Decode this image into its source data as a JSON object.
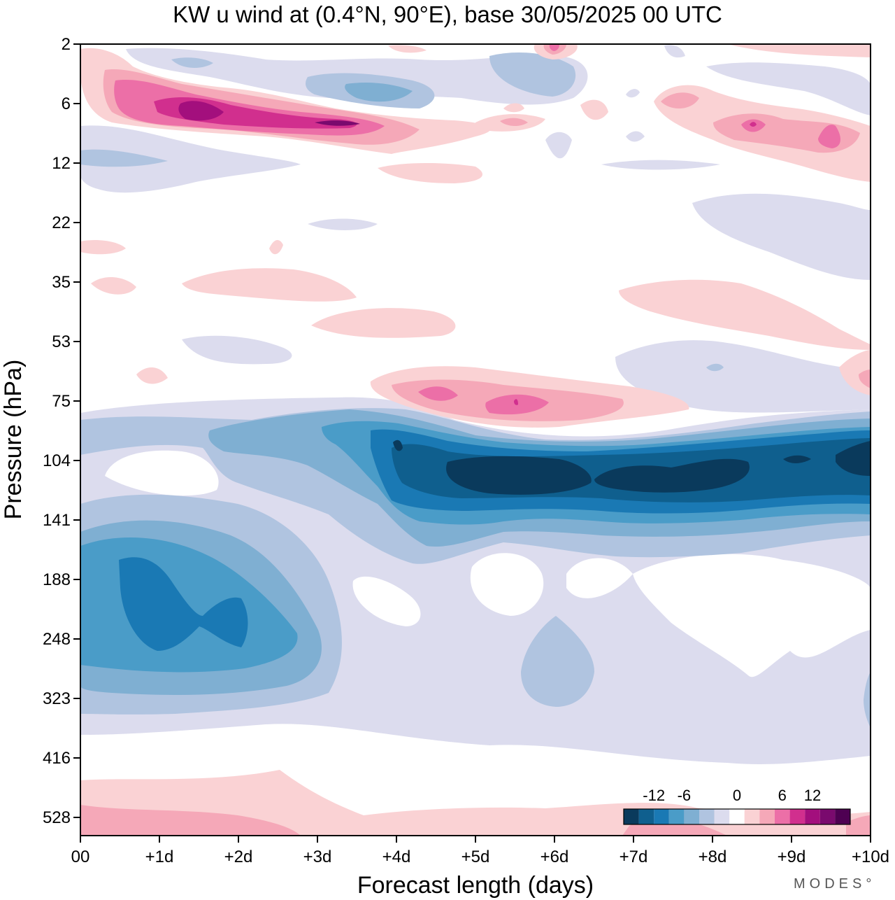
{
  "chart_data": {
    "type": "heatmap",
    "title": "KW u wind at (0.4°N, 90°E),  base 30/05/2025  00 UTC",
    "xlabel": "Forecast length (days)",
    "ylabel": "Pressure (hPa)",
    "x_ticks": [
      "00",
      "+1d",
      "+2d",
      "+3d",
      "+4d",
      "+5d",
      "+6d",
      "+7d",
      "+8d",
      "+9d",
      "+10d"
    ],
    "xlim_days": [
      0,
      10
    ],
    "y_ticks": [
      "2",
      "6",
      "12",
      "22",
      "35",
      "53",
      "75",
      "104",
      "141",
      "188",
      "248",
      "323",
      "416",
      "528"
    ],
    "colorbar": {
      "labels": [
        "-12",
        "-6",
        "0",
        "6",
        "12"
      ],
      "colors": [
        "#0a3a5c",
        "#0f5f8e",
        "#1a79b4",
        "#4a9cc8",
        "#7fafd2",
        "#b0c4e0",
        "#dcdcee",
        "#ffffff",
        "#fad2d4",
        "#f5a8b8",
        "#ec6fa7",
        "#d12f8e",
        "#a30f7d",
        "#7a0a6e",
        "#4e0052"
      ]
    },
    "field_levels": [
      {
        "level": -11,
        "color": "#0a3a5c",
        "desc": "strongest easterly core near 104 hPa days 6.5-10"
      },
      {
        "level": -9,
        "color": "#0f5f8e",
        "desc": "easterly jet 90-130 hPa days 3.7-10"
      },
      {
        "level": -7,
        "color": "#1a79b4",
        "desc": "easterly jet band; 188-248 hPa cell days 0.5-2.2"
      },
      {
        "level": -5,
        "color": "#4a9cc8"
      },
      {
        "level": -3,
        "color": "#7fafd2"
      },
      {
        "level": -1.5,
        "color": "#b0c4e0"
      },
      {
        "level": -0.5,
        "color": "#dcdcee"
      },
      {
        "level": 0.5,
        "color": "#fad2d4"
      },
      {
        "level": 2,
        "color": "#f5a8b8"
      },
      {
        "level": 4,
        "color": "#ec6fa7",
        "desc": "westerly band near 6 hPa days 0.5-3.5"
      },
      {
        "level": 7,
        "color": "#d12f8e"
      },
      {
        "level": 10,
        "color": "#a30f7d",
        "desc": "westerly maximum near 7 hPa day 1.5"
      }
    ]
  },
  "watermark": "MODES°"
}
